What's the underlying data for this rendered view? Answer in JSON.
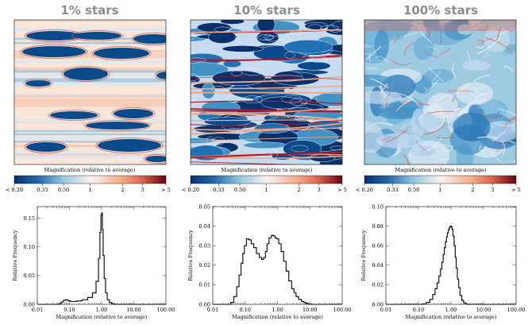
{
  "colors": {
    "low": "#08306b",
    "mid": "#f7f4f2",
    "high": "#67000d",
    "title": "#8c8c8c"
  },
  "colorbar": {
    "label": "Magnification (relative to average)",
    "ticks": [
      {
        "label": "< 0.20",
        "frac": 0.0
      },
      {
        "label": "0.33",
        "frac": 0.185
      },
      {
        "label": "0.50",
        "frac": 0.325
      },
      {
        "label": "1",
        "frac": 0.5
      },
      {
        "label": "2",
        "frac": 0.715
      },
      {
        "label": "3",
        "frac": 0.845
      },
      {
        "label": "> 5",
        "frac": 1.0
      }
    ]
  },
  "panels": [
    {
      "title": "1% stars",
      "map_label": "Magnification (relative to average)",
      "map_style": "sparse",
      "hist": {
        "xlabel": "Magnification (relative to average)",
        "ylabel": "Relative Frequency",
        "xticks": [
          "0.01",
          "0.10",
          "1.00",
          "10.00",
          "100.00"
        ],
        "ylim": [
          0,
          0.17
        ],
        "yticks": [
          "0.00",
          "0.05",
          "0.10",
          "0.15"
        ],
        "yvals": [
          0,
          0.05,
          0.1,
          0.15
        ],
        "peak": 0.159
      }
    },
    {
      "title": "10% stars",
      "map_label": "Magnification (relative to average)",
      "map_style": "dense",
      "hist": {
        "xlabel": "Magnification (relative to average)",
        "ylabel": "Relative Frequency",
        "xticks": [
          "0.01",
          "0.10",
          "1.00",
          "10.00",
          "100.00"
        ],
        "ylim": [
          0,
          0.05
        ],
        "yticks": [
          "0.00",
          "0.01",
          "0.02",
          "0.03",
          "0.04",
          "0.05"
        ],
        "yvals": [
          0,
          0.01,
          0.02,
          0.03,
          0.04,
          0.05
        ],
        "peak": 0.0353
      }
    },
    {
      "title": "100% stars",
      "map_label": "Magnification (relative to average)",
      "map_style": "smooth",
      "hist": {
        "xlabel": "Magnification (relative to average)",
        "ylabel": "Relative Frequency",
        "xticks": [
          "0.01",
          "0.10",
          "1.00",
          "10.00",
          "100.00"
        ],
        "ylim": [
          0,
          0.1
        ],
        "yticks": [
          "0.00",
          "0.02",
          "0.04",
          "0.06",
          "0.08",
          "0.10"
        ],
        "yvals": [
          0,
          0.02,
          0.04,
          0.06,
          0.08,
          0.1
        ],
        "peak": 0.08
      }
    }
  ],
  "chart_data": [
    {
      "type": "bar",
      "title": "1% stars",
      "xlabel": "Magnification (relative to average)",
      "ylabel": "Relative Frequency",
      "xscale": "log",
      "xlim": [
        0.01,
        100
      ],
      "ylim": [
        0,
        0.17
      ],
      "x": [
        0.05,
        0.06,
        0.07,
        0.08,
        0.09,
        0.1,
        0.12,
        0.15,
        0.2,
        0.3,
        0.45,
        0.6,
        0.75,
        0.85,
        0.92,
        0.98,
        1.03,
        1.08,
        1.15,
        1.25,
        1.4,
        1.6,
        1.9,
        2.3
      ],
      "values": [
        0.001,
        0.004,
        0.007,
        0.008,
        0.007,
        0.006,
        0.005,
        0.005,
        0.006,
        0.008,
        0.012,
        0.02,
        0.04,
        0.08,
        0.125,
        0.155,
        0.159,
        0.13,
        0.085,
        0.045,
        0.02,
        0.008,
        0.003,
        0.001
      ]
    },
    {
      "type": "bar",
      "title": "10% stars",
      "xlabel": "Magnification (relative to average)",
      "ylabel": "Relative Frequency",
      "xscale": "log",
      "xlim": [
        0.01,
        100
      ],
      "ylim": [
        0,
        0.05
      ],
      "x": [
        0.04,
        0.05,
        0.06,
        0.07,
        0.08,
        0.09,
        0.1,
        0.12,
        0.14,
        0.17,
        0.2,
        0.25,
        0.3,
        0.35,
        0.4,
        0.45,
        0.5,
        0.6,
        0.7,
        0.8,
        0.9,
        1.0,
        1.2,
        1.4,
        1.7,
        2.0,
        2.5,
        3.0,
        3.5,
        4.0,
        5.0,
        6.0,
        7.0,
        8.0,
        10.0
      ],
      "values": [
        0.001,
        0.004,
        0.009,
        0.015,
        0.021,
        0.026,
        0.03,
        0.0335,
        0.033,
        0.031,
        0.029,
        0.026,
        0.024,
        0.023,
        0.024,
        0.027,
        0.031,
        0.034,
        0.0353,
        0.035,
        0.034,
        0.0335,
        0.031,
        0.027,
        0.022,
        0.017,
        0.012,
        0.008,
        0.006,
        0.004,
        0.0025,
        0.0015,
        0.001,
        0.0005,
        0.0002
      ]
    },
    {
      "type": "bar",
      "title": "100% stars",
      "xlabel": "Magnification (relative to average)",
      "ylabel": "Relative Frequency",
      "xscale": "log",
      "xlim": [
        0.01,
        100
      ],
      "ylim": [
        0,
        0.1
      ],
      "x": [
        0.15,
        0.2,
        0.25,
        0.3,
        0.35,
        0.4,
        0.45,
        0.5,
        0.55,
        0.6,
        0.65,
        0.7,
        0.75,
        0.8,
        0.85,
        0.9,
        0.95,
        1.0,
        1.05,
        1.1,
        1.2,
        1.3,
        1.4,
        1.5,
        1.65,
        1.8,
        2.0,
        2.3,
        2.6,
        3.0
      ],
      "values": [
        0.0005,
        0.002,
        0.005,
        0.01,
        0.016,
        0.022,
        0.029,
        0.036,
        0.043,
        0.051,
        0.058,
        0.064,
        0.069,
        0.073,
        0.076,
        0.078,
        0.0795,
        0.08,
        0.0795,
        0.077,
        0.07,
        0.06,
        0.048,
        0.037,
        0.026,
        0.017,
        0.009,
        0.004,
        0.0015,
        0.0005
      ]
    }
  ]
}
